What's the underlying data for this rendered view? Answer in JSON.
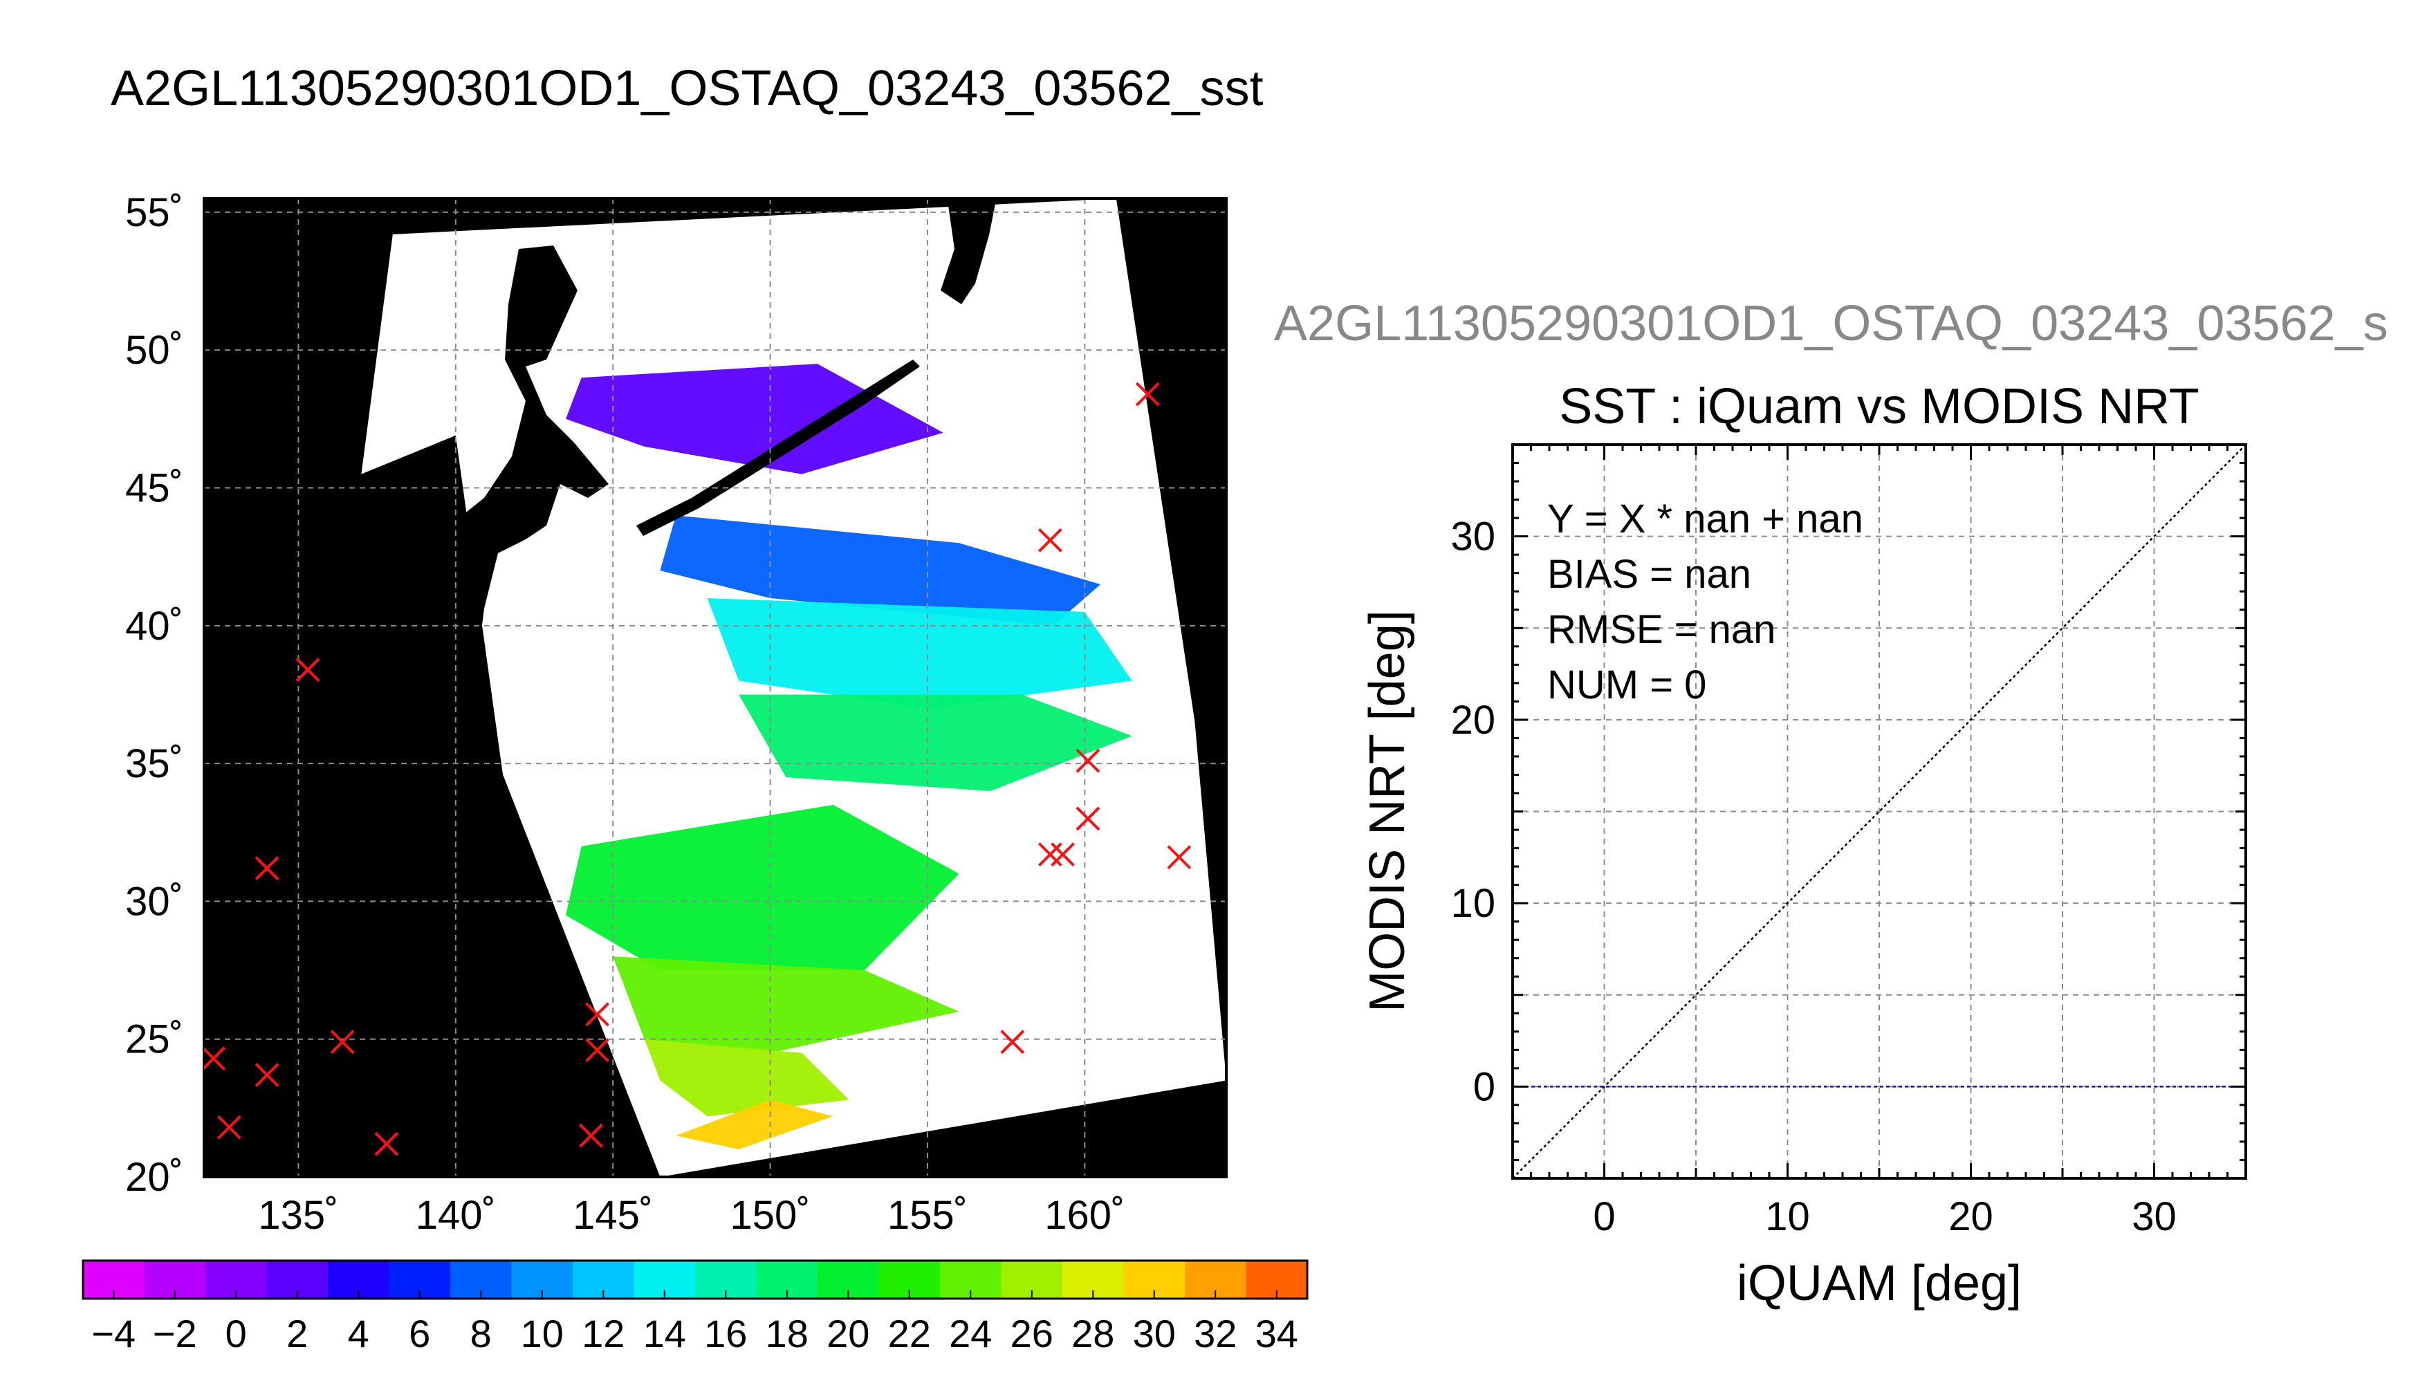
{
  "main_title": "A2GL11305290301OD1_OSTAQ_03243_03562_sst",
  "scatter_header": "A2GL11305290301OD1_OSTAQ_03243_03562_s",
  "colors": {
    "land": "#000000",
    "no_data": "#ffffff",
    "marker": "#ff1010",
    "fit_line": "#1010aa",
    "one_to_one_line": "#000000",
    "grid": "#8c8c8c"
  },
  "chart_data": [
    {
      "type": "heatmap",
      "title": "A2GL11305290301OD1_OSTAQ_03243_03562_sst",
      "xlim": [
        132,
        164.5
      ],
      "ylim": [
        20,
        55.5
      ],
      "x_ticks": [
        135,
        140,
        145,
        150,
        155,
        160
      ],
      "x_tick_labels": [
        "135˚",
        "140˚",
        "145˚",
        "150˚",
        "155˚",
        "160˚"
      ],
      "y_ticks": [
        20,
        25,
        30,
        35,
        40,
        45,
        50,
        55
      ],
      "y_tick_labels": [
        "20˚",
        "25˚",
        "30˚",
        "35˚",
        "40˚",
        "45˚",
        "50˚",
        "55˚"
      ],
      "grid": true,
      "swath_outline": [
        [
          138,
          54.2
        ],
        [
          161,
          55.5
        ],
        [
          163.5,
          36.5
        ],
        [
          164.5,
          23.5
        ],
        [
          146.5,
          20
        ],
        [
          141.5,
          34.6
        ],
        [
          140,
          46.9
        ],
        [
          137,
          45.5
        ]
      ],
      "sst_regions": [
        {
          "value": 1,
          "polygon": [
            [
              144,
              49
            ],
            [
              151.5,
              49.5
            ],
            [
              155.5,
              47
            ],
            [
              151,
              45.5
            ],
            [
              146,
              46.5
            ],
            [
              143.5,
              47.5
            ]
          ]
        },
        {
          "value": 8,
          "polygon": [
            [
              147,
              44
            ],
            [
              156,
              43
            ],
            [
              160.5,
              41.5
            ],
            [
              159,
              40
            ],
            [
              150,
              41
            ],
            [
              146.5,
              42
            ]
          ]
        },
        {
          "value": 13,
          "polygon": [
            [
              148,
              41
            ],
            [
              160,
              40.5
            ],
            [
              161.5,
              38
            ],
            [
              155,
              37
            ],
            [
              149,
              38
            ]
          ]
        },
        {
          "value": 18,
          "polygon": [
            [
              149,
              37.5
            ],
            [
              158,
              37.5
            ],
            [
              161.5,
              36
            ],
            [
              157,
              34
            ],
            [
              150.5,
              34.5
            ]
          ]
        },
        {
          "value": 20,
          "polygon": [
            [
              144,
              32
            ],
            [
              152,
              33.5
            ],
            [
              156,
              31
            ],
            [
              153,
              27.5
            ],
            [
              146.5,
              27.5
            ],
            [
              143.5,
              29.5
            ]
          ]
        },
        {
          "value": 23,
          "polygon": [
            [
              145,
              28
            ],
            [
              153,
              27.5
            ],
            [
              156,
              26
            ],
            [
              150,
              24.5
            ],
            [
              146,
              25
            ]
          ]
        },
        {
          "value": 26,
          "polygon": [
            [
              146,
              25
            ],
            [
              151,
              24.5
            ],
            [
              152.5,
              22.8
            ],
            [
              148,
              22.2
            ],
            [
              146.5,
              23.5
            ]
          ]
        },
        {
          "value": 30,
          "polygon": [
            [
              147,
              21.5
            ],
            [
              150,
              22.8
            ],
            [
              152,
              22.2
            ],
            [
              149,
              21
            ]
          ]
        }
      ],
      "iquam_points": [
        [
          162,
          48.4
        ],
        [
          158.9,
          43.1
        ],
        [
          135.3,
          38.4
        ],
        [
          134,
          31.2
        ],
        [
          160.1,
          35.1
        ],
        [
          160.1,
          33
        ],
        [
          158.9,
          31.7
        ],
        [
          159.3,
          31.7
        ],
        [
          163,
          31.6
        ],
        [
          157.7,
          24.9
        ],
        [
          144.5,
          25.9
        ],
        [
          144.5,
          24.6
        ],
        [
          136.4,
          24.9
        ],
        [
          132.3,
          24.3
        ],
        [
          134,
          23.7
        ],
        [
          132.8,
          21.8
        ],
        [
          137.8,
          21.2
        ],
        [
          144.3,
          21.5
        ]
      ],
      "colorbar": {
        "min": -5,
        "max": 35,
        "step": 2,
        "tick_labels": [
          "−4",
          "−2",
          "0",
          "2",
          "4",
          "6",
          "8",
          "10",
          "12",
          "14",
          "16",
          "18",
          "20",
          "22",
          "24",
          "26",
          "28",
          "30",
          "32",
          "34"
        ],
        "colors": [
          "#e000ff",
          "#b300ff",
          "#8400ff",
          "#5a00ff",
          "#1e00ff",
          "#0020ff",
          "#0060ff",
          "#0094ff",
          "#00c4ff",
          "#00f0f0",
          "#00f0b0",
          "#00f070",
          "#00f030",
          "#20f000",
          "#60f000",
          "#a0f000",
          "#dcf000",
          "#ffd000",
          "#ffa000",
          "#ff6000",
          "#ff2000"
        ]
      }
    },
    {
      "type": "scatter",
      "title": "SST : iQuam vs MODIS NRT",
      "xlabel": "iQUAM [deg]",
      "ylabel": "MODIS NRT [deg]",
      "xlim": [
        -5,
        35
      ],
      "ylim": [
        -5,
        35
      ],
      "x_tick_labels": [
        "0",
        "10",
        "20",
        "30"
      ],
      "y_tick_labels": [
        "0",
        "10",
        "20",
        "30"
      ],
      "grid": true,
      "stats_lines": [
        "Y = X * nan + nan",
        "BIAS = nan",
        "RMSE = nan",
        "NUM = 0"
      ],
      "points": [],
      "one_to_one_line": [
        [
          -5,
          -5
        ],
        [
          35,
          35
        ]
      ],
      "fit_line_y": 0
    }
  ]
}
